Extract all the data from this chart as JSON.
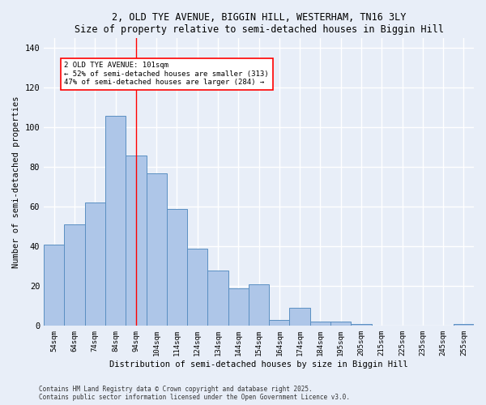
{
  "title1": "2, OLD TYE AVENUE, BIGGIN HILL, WESTERHAM, TN16 3LY",
  "title2": "Size of property relative to semi-detached houses in Biggin Hill",
  "xlabel": "Distribution of semi-detached houses by size in Biggin Hill",
  "ylabel": "Number of semi-detached properties",
  "categories": [
    "54sqm",
    "64sqm",
    "74sqm",
    "84sqm",
    "94sqm",
    "104sqm",
    "114sqm",
    "124sqm",
    "134sqm",
    "144sqm",
    "154sqm",
    "164sqm",
    "174sqm",
    "184sqm",
    "195sqm",
    "205sqm",
    "215sqm",
    "225sqm",
    "235sqm",
    "245sqm",
    "255sqm"
  ],
  "values": [
    41,
    51,
    62,
    106,
    86,
    77,
    59,
    39,
    28,
    19,
    21,
    3,
    9,
    2,
    2,
    1,
    0,
    0,
    0,
    0,
    1
  ],
  "bar_color": "#aec6e8",
  "bar_edge_color": "#5a8fc2",
  "bg_color": "#e8eef8",
  "grid_color": "#ffffff",
  "annotation_line1": "2 OLD TYE AVENUE: 101sqm",
  "annotation_line2": "← 52% of semi-detached houses are smaller (313)",
  "annotation_line3": "47% of semi-detached houses are larger (284) →",
  "vline_index": 4.5,
  "ylim": [
    0,
    145
  ],
  "yticks": [
    0,
    20,
    40,
    60,
    80,
    100,
    120,
    140
  ],
  "footer1": "Contains HM Land Registry data © Crown copyright and database right 2025.",
  "footer2": "Contains public sector information licensed under the Open Government Licence v3.0."
}
